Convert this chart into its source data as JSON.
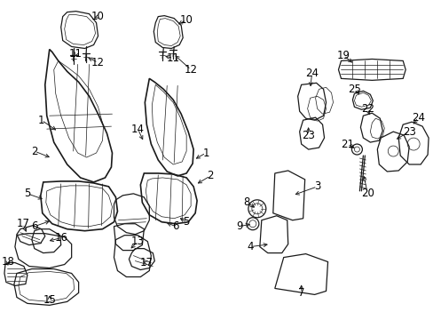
{
  "bg_color": "#ffffff",
  "fig_width": 4.89,
  "fig_height": 3.6,
  "dpi": 100,
  "label_fontsize": 8.5,
  "line_color": "#1a1a1a",
  "text_color": "#000000",
  "lw_main": 0.9,
  "lw_thin": 0.5,
  "lw_thick": 1.2
}
